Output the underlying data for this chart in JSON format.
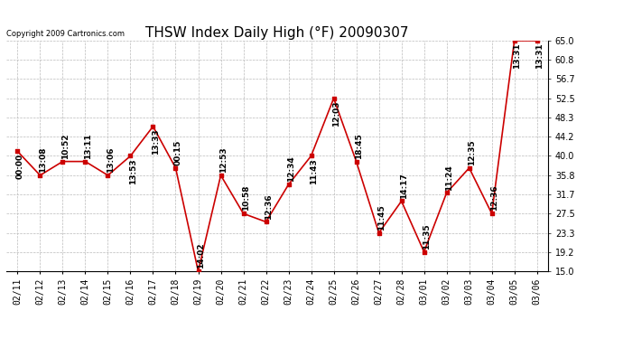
{
  "title": "THSW Index Daily High (°F) 20090307",
  "copyright": "Copyright 2009 Cartronics.com",
  "x_labels": [
    "02/11",
    "02/12",
    "02/13",
    "02/14",
    "02/15",
    "02/16",
    "02/17",
    "02/18",
    "02/19",
    "02/20",
    "02/21",
    "02/22",
    "02/23",
    "02/24",
    "02/25",
    "02/26",
    "02/27",
    "02/28",
    "03/01",
    "03/02",
    "03/03",
    "03/04",
    "03/05",
    "03/06"
  ],
  "y_values": [
    41.0,
    35.8,
    38.8,
    38.8,
    35.8,
    40.0,
    46.4,
    37.4,
    15.0,
    35.8,
    27.5,
    25.7,
    33.8,
    40.0,
    52.5,
    38.8,
    23.3,
    30.2,
    19.2,
    32.0,
    37.4,
    27.5,
    65.0,
    65.0
  ],
  "point_labels": [
    "00:00",
    "13:08",
    "10:52",
    "13:11",
    "13:06",
    "13:53",
    "13:33",
    "00:15",
    "14:02",
    "12:53",
    "10:58",
    "12:36",
    "12:34",
    "11:43",
    "12:03",
    "18:45",
    "11:45",
    "14:17",
    "11:35",
    "11:24",
    "12:35",
    "12:36",
    "13:31",
    "13:31"
  ],
  "line_color": "#cc0000",
  "marker_color": "#cc0000",
  "bg_color": "#ffffff",
  "grid_color": "#bbbbbb",
  "ylim": [
    15.0,
    65.0
  ],
  "yticks": [
    15.0,
    19.2,
    23.3,
    27.5,
    31.7,
    35.8,
    40.0,
    44.2,
    48.3,
    52.5,
    56.7,
    60.8,
    65.0
  ],
  "title_fontsize": 11,
  "label_fontsize": 6.5,
  "tick_fontsize": 7
}
